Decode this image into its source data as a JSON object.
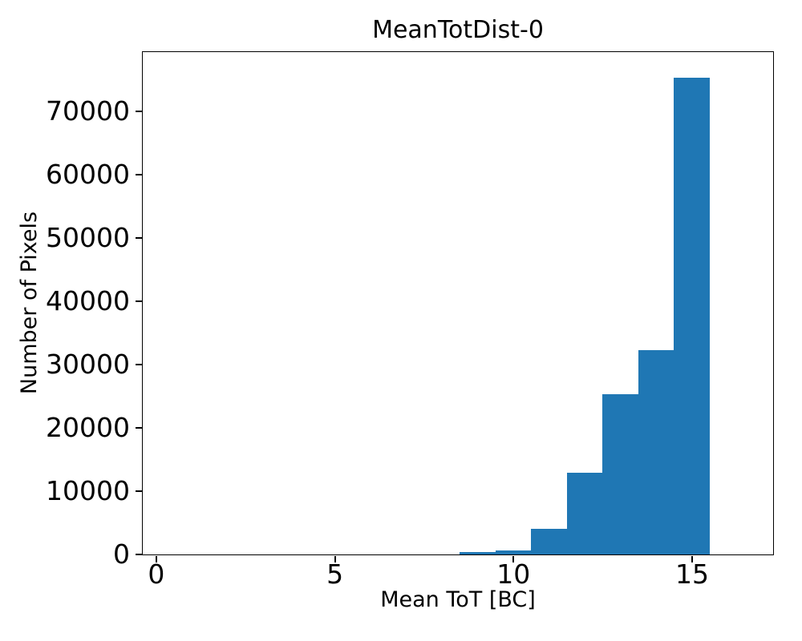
{
  "figure": {
    "background": "#ffffff"
  },
  "chart_data": {
    "type": "bar",
    "subtype": "histogram",
    "title": "MeanTotDist-0",
    "xlabel": "Mean ToT [BC]",
    "ylabel": "Number of Pixels",
    "bin_edges": [
      8.5,
      9.5,
      10.5,
      11.5,
      12.5,
      13.5,
      14.5,
      15.5
    ],
    "counts": [
      290,
      630,
      3960,
      12800,
      25200,
      32200,
      75200
    ],
    "xticks": [
      0,
      5,
      10,
      15
    ],
    "yticks": [
      0,
      10000,
      20000,
      30000,
      40000,
      50000,
      60000,
      70000
    ],
    "xlim": [
      -0.38,
      17.28
    ],
    "ylim": [
      0,
      79300
    ],
    "bar_color": "#1f77b4",
    "axis_color": "#000000",
    "text_color": "#000000",
    "grid": false,
    "legend": null
  }
}
